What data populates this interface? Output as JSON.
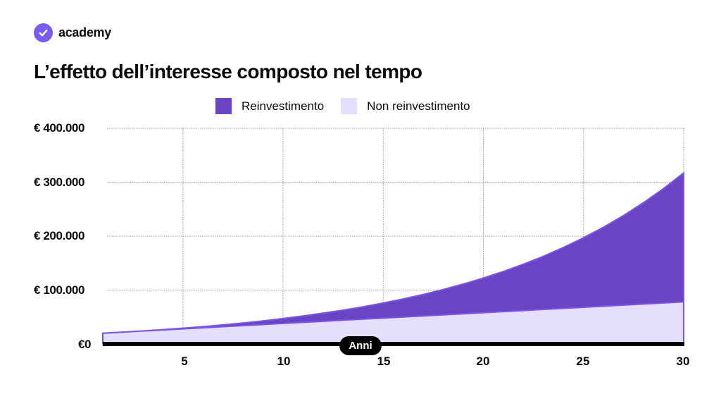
{
  "brand": {
    "name": "academy",
    "icon": "check-circle-icon",
    "color": "#7b5cf0"
  },
  "title": "L’effetto dell’interesse composto nel tempo",
  "legend": [
    {
      "label": "Reinvestimento",
      "color": "#6a44c2"
    },
    {
      "label": "Non reinvestimento",
      "color": "#e6defd"
    }
  ],
  "y_ticks": [
    "€ 400.000",
    "€ 300.000",
    "€ 200.000",
    "€ 100.000",
    "€0"
  ],
  "x_ticks": [
    "5",
    "10",
    "15",
    "20",
    "25",
    "30"
  ],
  "x_axis_label": "Anni",
  "chart_data": {
    "type": "area",
    "title": "L’effetto dell’interesse composto nel tempo",
    "xlabel": "Anni",
    "ylabel": "",
    "x": [
      1,
      2,
      3,
      4,
      5,
      6,
      7,
      8,
      9,
      10,
      11,
      12,
      13,
      14,
      15,
      16,
      17,
      18,
      19,
      20,
      21,
      22,
      23,
      24,
      25,
      26,
      27,
      28,
      29,
      30
    ],
    "series": [
      {
        "name": "Reinvestimento",
        "color": "#6a44c2",
        "values": [
          20000,
          22000,
          24200,
          26620,
          29282,
          32210,
          35431,
          38974,
          42872,
          47159,
          51875,
          57062,
          62769,
          69045,
          75950,
          83545,
          91899,
          101089,
          111198,
          122318,
          134550,
          148005,
          162805,
          179086,
          196995,
          216694,
          238364,
          262200,
          288420,
          317262
        ]
      },
      {
        "name": "Non reinvestimento",
        "color": "#e6defd",
        "values": [
          20000,
          22000,
          24000,
          26000,
          28000,
          30000,
          32000,
          34000,
          36000,
          38000,
          40000,
          42000,
          44000,
          46000,
          48000,
          50000,
          52000,
          54000,
          56000,
          58000,
          60000,
          62000,
          64000,
          66000,
          68000,
          70000,
          72000,
          74000,
          76000,
          78000
        ]
      }
    ],
    "xticks": [
      5,
      10,
      15,
      20,
      25,
      30
    ],
    "yticks": [
      0,
      100000,
      200000,
      300000,
      400000
    ],
    "ytick_labels": [
      "€0",
      "€ 100.000",
      "€ 200.000",
      "€ 300.000",
      "€ 400.000"
    ],
    "xlim": [
      1,
      30
    ],
    "ylim": [
      0,
      400000
    ],
    "grid": true,
    "legend_position": "top"
  }
}
